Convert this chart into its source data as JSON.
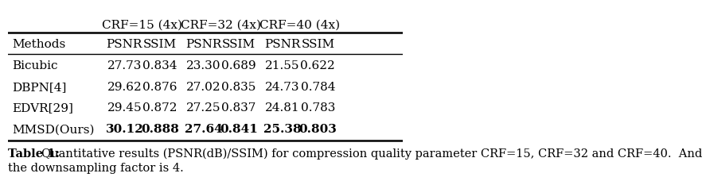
{
  "col_headers_top": [
    "CRF=15 (4x)",
    "CRF=32 (4x)",
    "CRF=40 (4x)"
  ],
  "col_headers_sub": [
    "PSNR",
    "SSIM",
    "PSNR",
    "SSIM",
    "PSNR",
    "SSIM"
  ],
  "row_header": "Methods",
  "rows": [
    {
      "method": "Bicubic",
      "vals": [
        "27.73",
        "0.834",
        "23.30",
        "0.689",
        "21.55",
        "0.622"
      ],
      "bold": [
        false,
        false,
        false,
        false,
        false,
        false
      ]
    },
    {
      "method": "DBPN[4]",
      "vals": [
        "29.62",
        "0.876",
        "27.02",
        "0.835",
        "24.73",
        "0.784"
      ],
      "bold": [
        false,
        false,
        false,
        false,
        false,
        false
      ]
    },
    {
      "method": "EDVR[29]",
      "vals": [
        "29.45",
        "0.872",
        "27.25",
        "0.837",
        "24.81",
        "0.783"
      ],
      "bold": [
        false,
        false,
        false,
        false,
        false,
        false
      ]
    },
    {
      "method": "MMSD(Ours)",
      "vals": [
        "30.12",
        "0.888",
        "27.64",
        "0.841",
        "25.38",
        "0.803"
      ],
      "bold": [
        true,
        true,
        true,
        true,
        true,
        true
      ]
    }
  ],
  "caption_bold": "Table 1: ",
  "caption_normal": "Quantitative results (PSNR(dB)/SSIM) for compression quality parameter CRF=15, CRF=32 and CRF=40.  And\nthe downsampling factor is 4.",
  "bg_color": "#ffffff",
  "font_size_header": 11,
  "font_size_data": 11,
  "font_size_caption": 10.5
}
